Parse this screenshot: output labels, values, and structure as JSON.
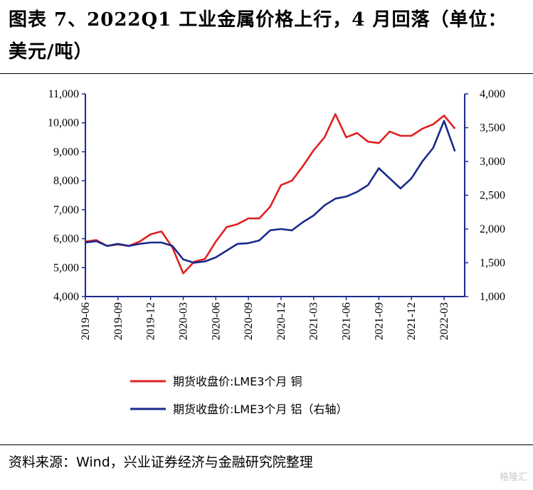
{
  "header": {
    "title": "图表 7、2022Q1 工业金属价格上行，4 月回落（单位：美元/吨）"
  },
  "footer": {
    "source": "资料来源：Wind，兴业证券经济与金融研究院整理",
    "watermark": "格隆汇"
  },
  "colors": {
    "copper": "#e02020",
    "aluminum": "#1a2a8c",
    "axis": "#1a2a8c"
  },
  "chart_data": {
    "type": "line",
    "title": "",
    "x_ticks": [
      "2019-06",
      "2019-09",
      "2019-12",
      "2020-03",
      "2020-06",
      "2020-09",
      "2020-12",
      "2021-03",
      "2021-06",
      "2021-09",
      "2021-12",
      "2022-03"
    ],
    "y_left": {
      "ticks": [
        "4,000",
        "5,000",
        "6,000",
        "7,000",
        "8,000",
        "9,000",
        "10,000",
        "11,000"
      ],
      "ylim": [
        4000,
        11000
      ]
    },
    "y_right": {
      "ticks": [
        "1,000",
        "1,500",
        "2,000",
        "2,500",
        "3,000",
        "3,500",
        "4,000"
      ],
      "ylim": [
        1000,
        4000
      ]
    },
    "grid": false,
    "legend_position": "bottom",
    "series": [
      {
        "name": "期货收盘价:LME3个月 铜",
        "axis": "left",
        "color": "#e02020",
        "x": [
          "2019-06",
          "2019-07",
          "2019-08",
          "2019-09",
          "2019-10",
          "2019-11",
          "2019-12",
          "2020-01",
          "2020-02",
          "2020-03",
          "2020-04",
          "2020-05",
          "2020-06",
          "2020-07",
          "2020-08",
          "2020-09",
          "2020-10",
          "2020-11",
          "2020-12",
          "2021-01",
          "2021-02",
          "2021-03",
          "2021-04",
          "2021-05",
          "2021-06",
          "2021-07",
          "2021-08",
          "2021-09",
          "2021-10",
          "2021-11",
          "2021-12",
          "2022-01",
          "2022-02",
          "2022-03",
          "2022-04"
        ],
        "values": [
          5900,
          5950,
          5750,
          5800,
          5750,
          5900,
          6150,
          6250,
          5700,
          4800,
          5200,
          5300,
          5900,
          6400,
          6500,
          6700,
          6700,
          7100,
          7850,
          8000,
          8500,
          9050,
          9500,
          10300,
          9500,
          9650,
          9350,
          9300,
          9700,
          9550,
          9550,
          9800,
          9950,
          10250,
          9800
        ]
      },
      {
        "name": "期货收盘价:LME3个月 铝（右轴）",
        "axis": "right",
        "color": "#1a2a8c",
        "x": [
          "2019-06",
          "2019-07",
          "2019-08",
          "2019-09",
          "2019-10",
          "2019-11",
          "2019-12",
          "2020-01",
          "2020-02",
          "2020-03",
          "2020-04",
          "2020-05",
          "2020-06",
          "2020-07",
          "2020-08",
          "2020-09",
          "2020-10",
          "2020-11",
          "2020-12",
          "2021-01",
          "2021-02",
          "2021-03",
          "2021-04",
          "2021-05",
          "2021-06",
          "2021-07",
          "2021-08",
          "2021-09",
          "2021-10",
          "2021-11",
          "2021-12",
          "2022-01",
          "2022-02",
          "2022-03",
          "2022-04"
        ],
        "values": [
          1800,
          1820,
          1750,
          1780,
          1750,
          1780,
          1800,
          1800,
          1750,
          1550,
          1500,
          1520,
          1580,
          1680,
          1780,
          1790,
          1830,
          1980,
          2000,
          1980,
          2100,
          2200,
          2350,
          2450,
          2480,
          2550,
          2650,
          2900,
          2750,
          2600,
          2750,
          3000,
          3200,
          3600,
          3150
        ]
      }
    ]
  }
}
